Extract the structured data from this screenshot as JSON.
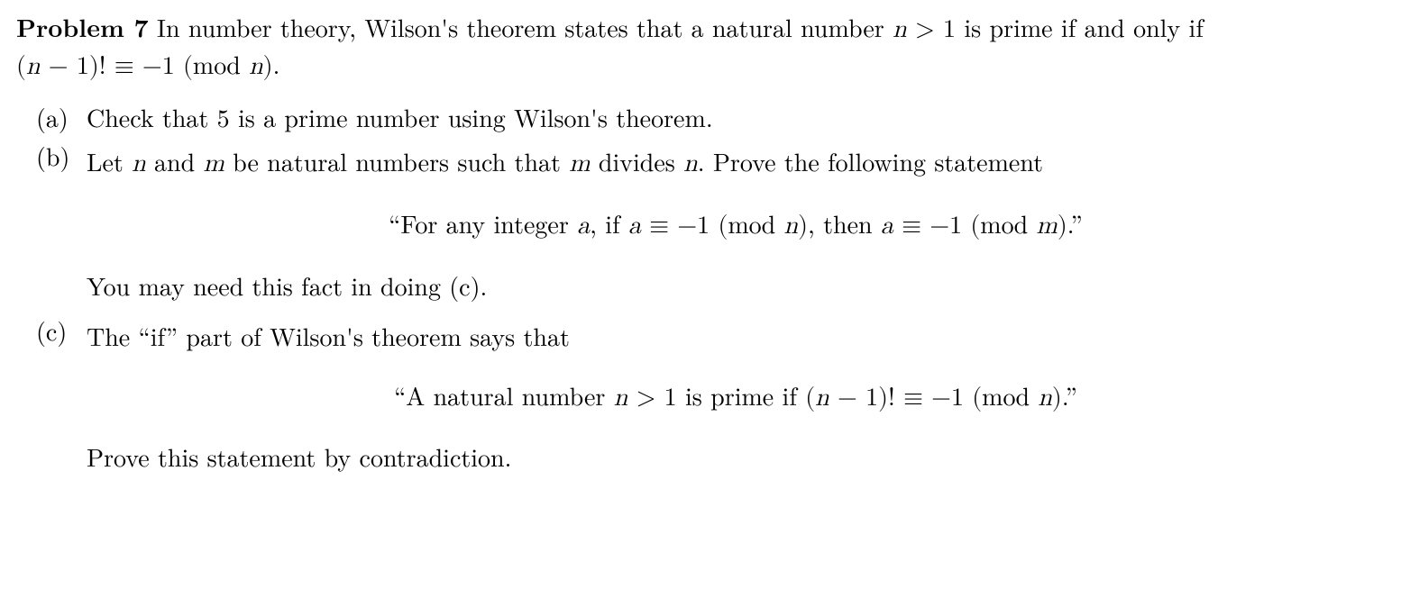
{
  "problem": {
    "label": "Problem 7",
    "intro_pre": " In number theory, Wilson's theorem states that a natural number ",
    "intro_math1": "n > 1",
    "intro_mid": " is prime if and only if ",
    "intro_math2": "(n − 1)! ≡ −1 (mod n)",
    "intro_post": "."
  },
  "items": {
    "a": {
      "marker": "(a)",
      "text": "Check that 5 is a prime number using Wilson's theorem."
    },
    "b": {
      "marker": "(b)",
      "lead_pre": "Let ",
      "lead_m1": "n",
      "lead_mid1": " and ",
      "lead_m2": "m",
      "lead_mid2": " be natural numbers such that ",
      "lead_m3": "m",
      "lead_mid3": " divides ",
      "lead_m4": "n",
      "lead_post": ". Prove the following statement",
      "quote_pre": "“For any integer ",
      "quote_m1": "a",
      "quote_mid1": ", if ",
      "quote_m2": "a ≡ −1 (mod n)",
      "quote_mid2": ", then ",
      "quote_m3": "a ≡ −1 (mod m)",
      "quote_post": ".”",
      "tail": "You may need this fact in doing (c)."
    },
    "c": {
      "marker": "(c)",
      "lead": "The “if” part of Wilson's theorem says that",
      "quote_pre": "“A natural number ",
      "quote_m1": "n > 1",
      "quote_mid1": " is prime if ",
      "quote_m2": "(n − 1)! ≡ −1 (mod n)",
      "quote_post": ".”",
      "tail": "Prove this statement by contradiction."
    }
  }
}
